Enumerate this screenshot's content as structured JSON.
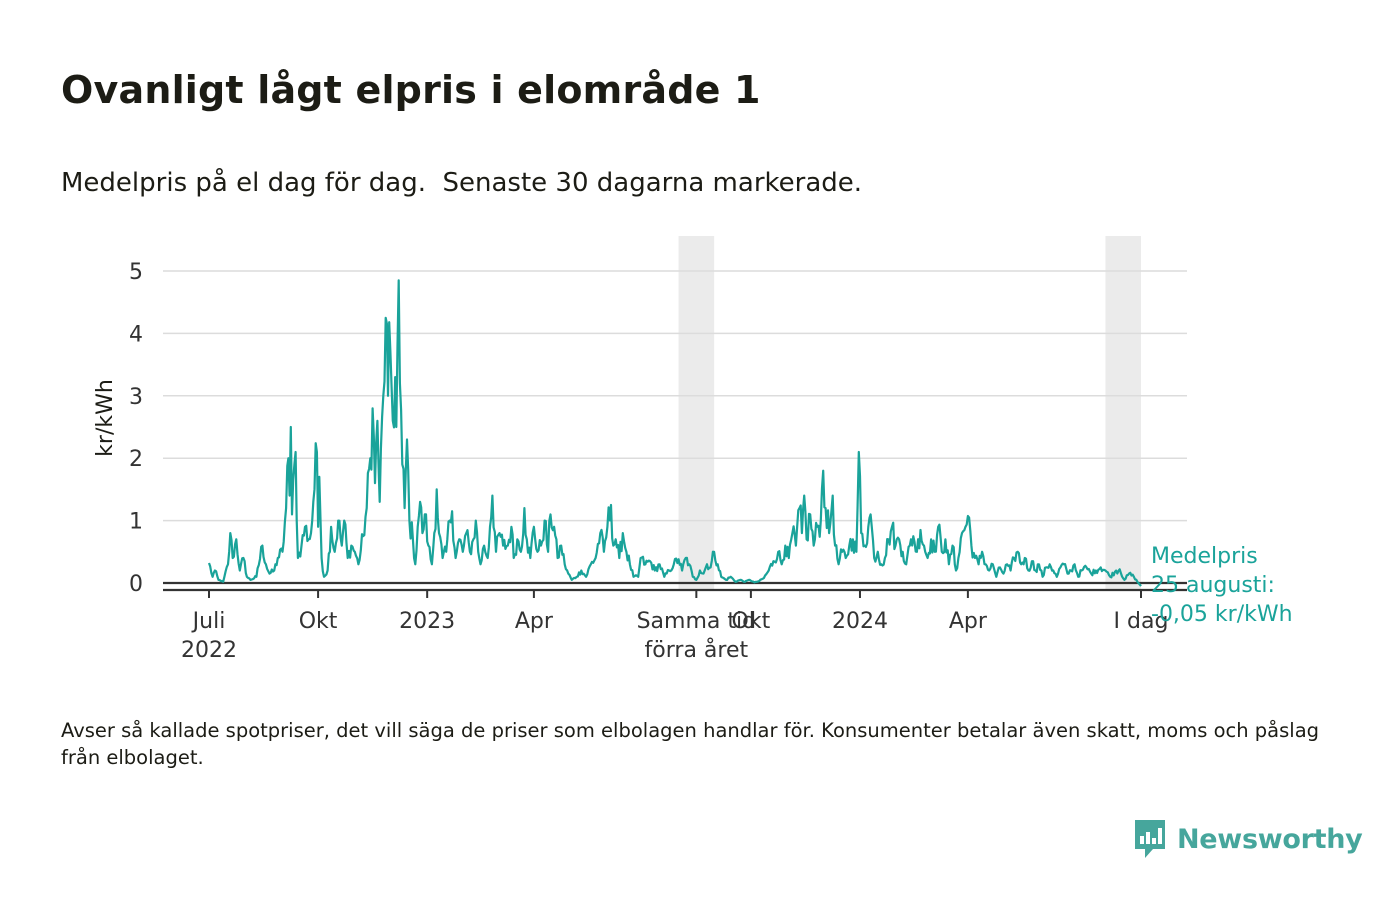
{
  "title": "Ovanligt lågt elpris i elområde 1",
  "subtitle": "Medelpris på el dag för dag.  Senaste 30 dagarna markerade.",
  "note": "Avser så kallade spotpriser, det vill säga de priser som elbolagen handlar för. Konsumenter betalar även skatt, moms och påslag från elbolaget.",
  "brand": {
    "name": "Newsworthy",
    "icon": "newsworthy-logo-icon",
    "color": "#46a69c"
  },
  "chart_data": {
    "type": "line",
    "ylabel": "kr/kWh",
    "ylim": [
      -0.1,
      5.4
    ],
    "yticks": [
      0,
      1,
      2,
      3,
      4,
      5
    ],
    "grid": true,
    "line_color": "#1aa39a",
    "x_domain": [
      0,
      786
    ],
    "x_start_date": "2022-07-01",
    "x_ticks": [
      {
        "day": 0,
        "lines": [
          "Juli",
          "2022"
        ]
      },
      {
        "day": 92,
        "lines": [
          "Okt"
        ]
      },
      {
        "day": 184,
        "lines": [
          "2023"
        ]
      },
      {
        "day": 274,
        "lines": [
          "Apr"
        ]
      },
      {
        "day": 411,
        "lines": [
          "Samma tid",
          "förra året"
        ]
      },
      {
        "day": 457,
        "lines": [
          "Okt"
        ]
      },
      {
        "day": 549,
        "lines": [
          "2024"
        ]
      },
      {
        "day": 640,
        "lines": [
          "Apr"
        ]
      },
      {
        "day": 786,
        "lines": [
          "I dag"
        ]
      }
    ],
    "highlight_periods": [
      {
        "label": "Samma tid förra året",
        "start_day": 396,
        "end_day": 426
      },
      {
        "label": "Senaste 30 dagarna",
        "start_day": 756,
        "end_day": 786
      }
    ],
    "annotation": {
      "lines": [
        "Medelpris",
        "25 augusti:",
        "-0,05 kr/kWh"
      ],
      "day": 786,
      "value": -0.05
    },
    "anchors": [
      [
        0,
        0.32
      ],
      [
        3,
        0.1
      ],
      [
        5,
        0.2
      ],
      [
        8,
        0.05
      ],
      [
        12,
        0.02
      ],
      [
        16,
        0.3
      ],
      [
        18,
        0.8
      ],
      [
        20,
        0.4
      ],
      [
        23,
        0.7
      ],
      [
        26,
        0.2
      ],
      [
        29,
        0.4
      ],
      [
        32,
        0.1
      ],
      [
        35,
        0.05
      ],
      [
        40,
        0.1
      ],
      [
        45,
        0.6
      ],
      [
        48,
        0.3
      ],
      [
        51,
        0.15
      ],
      [
        55,
        0.2
      ],
      [
        58,
        0.4
      ],
      [
        62,
        0.5
      ],
      [
        65,
        1.2
      ],
      [
        67,
        2.0
      ],
      [
        68,
        1.4
      ],
      [
        69,
        2.5
      ],
      [
        70,
        1.1
      ],
      [
        72,
        1.9
      ],
      [
        73,
        2.1
      ],
      [
        75,
        0.4
      ],
      [
        78,
        0.6
      ],
      [
        81,
        0.9
      ],
      [
        84,
        0.7
      ],
      [
        86,
        0.8
      ],
      [
        88,
        1.3
      ],
      [
        91,
        2.1
      ],
      [
        92,
        0.9
      ],
      [
        93,
        1.7
      ],
      [
        95,
        0.4
      ],
      [
        97,
        0.1
      ],
      [
        100,
        0.2
      ],
      [
        103,
        0.9
      ],
      [
        106,
        0.5
      ],
      [
        109,
        1.0
      ],
      [
        112,
        0.6
      ],
      [
        114,
        1.0
      ],
      [
        117,
        0.4
      ],
      [
        120,
        0.6
      ],
      [
        123,
        0.5
      ],
      [
        126,
        0.3
      ],
      [
        130,
        0.75
      ],
      [
        133,
        1.2
      ],
      [
        136,
        2.0
      ],
      [
        138,
        2.8
      ],
      [
        140,
        1.6
      ],
      [
        142,
        2.6
      ],
      [
        144,
        1.3
      ],
      [
        147,
        3.0
      ],
      [
        149,
        4.25
      ],
      [
        151,
        3.0
      ],
      [
        153,
        3.7
      ],
      [
        155,
        2.6
      ],
      [
        157,
        3.3
      ],
      [
        158,
        2.5
      ],
      [
        160,
        4.85
      ],
      [
        161,
        3.2
      ],
      [
        163,
        1.9
      ],
      [
        165,
        1.2
      ],
      [
        167,
        2.3
      ],
      [
        169,
        1.0
      ],
      [
        172,
        0.7
      ],
      [
        174,
        0.3
      ],
      [
        176,
        0.9
      ],
      [
        178,
        1.3
      ],
      [
        180,
        0.8
      ],
      [
        182,
        1.1
      ],
      [
        185,
        0.6
      ],
      [
        188,
        0.3
      ],
      [
        190,
        0.8
      ],
      [
        192,
        1.5
      ],
      [
        194,
        0.8
      ],
      [
        197,
        0.4
      ],
      [
        200,
        0.5
      ],
      [
        203,
        1.0
      ],
      [
        205,
        1.15
      ],
      [
        208,
        0.4
      ],
      [
        211,
        0.7
      ],
      [
        214,
        0.5
      ],
      [
        217,
        0.8
      ],
      [
        220,
        0.5
      ],
      [
        223,
        0.7
      ],
      [
        225,
        1.0
      ],
      [
        227,
        0.5
      ],
      [
        229,
        0.3
      ],
      [
        232,
        0.6
      ],
      [
        235,
        0.4
      ],
      [
        237,
        0.9
      ],
      [
        239,
        1.4
      ],
      [
        242,
        0.5
      ],
      [
        245,
        0.8
      ],
      [
        248,
        0.6
      ],
      [
        252,
        0.6
      ],
      [
        255,
        0.9
      ],
      [
        257,
        0.4
      ],
      [
        260,
        0.7
      ],
      [
        263,
        0.5
      ],
      [
        266,
        1.2
      ],
      [
        268,
        0.7
      ],
      [
        271,
        0.4
      ],
      [
        274,
        0.9
      ],
      [
        277,
        0.5
      ],
      [
        280,
        0.6
      ],
      [
        283,
        1.0
      ],
      [
        286,
        0.5
      ],
      [
        288,
        1.1
      ],
      [
        291,
        0.9
      ],
      [
        294,
        0.4
      ],
      [
        297,
        0.6
      ],
      [
        300,
        0.3
      ],
      [
        303,
        0.15
      ],
      [
        306,
        0.05
      ],
      [
        310,
        0.1
      ],
      [
        314,
        0.2
      ],
      [
        318,
        0.1
      ],
      [
        322,
        0.3
      ],
      [
        326,
        0.4
      ],
      [
        330,
        0.8
      ],
      [
        333,
        0.5
      ],
      [
        336,
        0.9
      ],
      [
        339,
        1.25
      ],
      [
        341,
        0.6
      ],
      [
        343,
        0.7
      ],
      [
        346,
        0.4
      ],
      [
        349,
        0.8
      ],
      [
        352,
        0.5
      ],
      [
        355,
        0.3
      ],
      [
        358,
        0.1
      ],
      [
        362,
        0.1
      ],
      [
        364,
        0.4
      ],
      [
        368,
        0.3
      ],
      [
        372,
        0.35
      ],
      [
        376,
        0.2
      ],
      [
        380,
        0.3
      ],
      [
        384,
        0.1
      ],
      [
        388,
        0.2
      ],
      [
        392,
        0.3
      ],
      [
        396,
        0.38
      ],
      [
        399,
        0.2
      ],
      [
        402,
        0.4
      ],
      [
        405,
        0.3
      ],
      [
        408,
        0.1
      ],
      [
        411,
        0.05
      ],
      [
        414,
        0.2
      ],
      [
        417,
        0.15
      ],
      [
        420,
        0.3
      ],
      [
        423,
        0.25
      ],
      [
        426,
        0.5
      ],
      [
        429,
        0.3
      ],
      [
        432,
        0.1
      ],
      [
        436,
        0.05
      ],
      [
        440,
        0.1
      ],
      [
        444,
        0.02
      ],
      [
        448,
        0.05
      ],
      [
        452,
        0.02
      ],
      [
        456,
        0.05
      ],
      [
        460,
        0.01
      ],
      [
        464,
        0.03
      ],
      [
        468,
        0.08
      ],
      [
        472,
        0.2
      ],
      [
        476,
        0.35
      ],
      [
        480,
        0.5
      ],
      [
        483,
        0.3
      ],
      [
        486,
        0.6
      ],
      [
        489,
        0.4
      ],
      [
        492,
        0.8
      ],
      [
        495,
        0.6
      ],
      [
        498,
        1.2
      ],
      [
        500,
        0.8
      ],
      [
        502,
        1.4
      ],
      [
        504,
        0.7
      ],
      [
        507,
        1.1
      ],
      [
        510,
        0.6
      ],
      [
        513,
        0.9
      ],
      [
        516,
        1.0
      ],
      [
        518,
        1.8
      ],
      [
        520,
        1.2
      ],
      [
        523,
        0.8
      ],
      [
        526,
        1.4
      ],
      [
        528,
        0.6
      ],
      [
        531,
        0.3
      ],
      [
        534,
        0.5
      ],
      [
        537,
        0.4
      ],
      [
        540,
        0.6
      ],
      [
        543,
        0.7
      ],
      [
        546,
        0.5
      ],
      [
        548,
        2.1
      ],
      [
        550,
        0.8
      ],
      [
        553,
        0.6
      ],
      [
        556,
        0.9
      ],
      [
        558,
        1.1
      ],
      [
        561,
        0.4
      ],
      [
        564,
        0.5
      ],
      [
        567,
        0.3
      ],
      [
        570,
        0.4
      ],
      [
        573,
        0.7
      ],
      [
        576,
        0.9
      ],
      [
        579,
        0.6
      ],
      [
        582,
        0.7
      ],
      [
        585,
        0.5
      ],
      [
        588,
        0.3
      ],
      [
        591,
        0.6
      ],
      [
        594,
        0.75
      ],
      [
        597,
        0.5
      ],
      [
        600,
        0.85
      ],
      [
        603,
        0.6
      ],
      [
        606,
        0.4
      ],
      [
        609,
        0.7
      ],
      [
        612,
        0.5
      ],
      [
        615,
        0.9
      ],
      [
        618,
        0.5
      ],
      [
        621,
        0.7
      ],
      [
        624,
        0.3
      ],
      [
        627,
        0.6
      ],
      [
        630,
        0.2
      ],
      [
        632,
        0.4
      ],
      [
        635,
        0.8
      ],
      [
        638,
        0.9
      ],
      [
        641,
        1.05
      ],
      [
        643,
        0.6
      ],
      [
        646,
        0.4
      ],
      [
        649,
        0.3
      ],
      [
        652,
        0.5
      ],
      [
        655,
        0.3
      ],
      [
        658,
        0.2
      ],
      [
        661,
        0.3
      ],
      [
        664,
        0.1
      ],
      [
        667,
        0.25
      ],
      [
        670,
        0.15
      ],
      [
        673,
        0.3
      ],
      [
        676,
        0.2
      ],
      [
        679,
        0.4
      ],
      [
        682,
        0.5
      ],
      [
        685,
        0.3
      ],
      [
        688,
        0.4
      ],
      [
        691,
        0.2
      ],
      [
        694,
        0.35
      ],
      [
        697,
        0.2
      ],
      [
        700,
        0.3
      ],
      [
        703,
        0.1
      ],
      [
        706,
        0.25
      ],
      [
        709,
        0.3
      ],
      [
        712,
        0.2
      ],
      [
        715,
        0.1
      ],
      [
        718,
        0.25
      ],
      [
        721,
        0.3
      ],
      [
        724,
        0.15
      ],
      [
        727,
        0.2
      ],
      [
        730,
        0.3
      ],
      [
        733,
        0.1
      ],
      [
        736,
        0.2
      ],
      [
        740,
        0.25
      ],
      [
        744,
        0.15
      ],
      [
        748,
        0.2
      ],
      [
        752,
        0.25
      ],
      [
        756,
        0.2
      ],
      [
        760,
        0.1
      ],
      [
        764,
        0.18
      ],
      [
        768,
        0.22
      ],
      [
        772,
        0.05
      ],
      [
        776,
        0.15
      ],
      [
        780,
        0.1
      ],
      [
        783,
        0.02
      ],
      [
        786,
        -0.05
      ]
    ]
  }
}
